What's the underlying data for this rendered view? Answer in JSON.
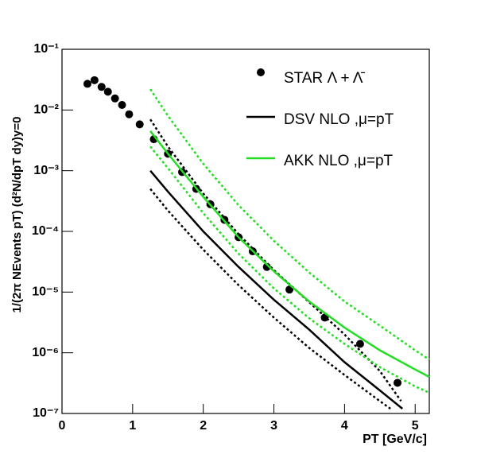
{
  "chart_data": {
    "type": "scatter",
    "ylabel": "1/(2π NEvents pT) (d²N/dpT dy)y=0",
    "xlabel": "PT [GeV/c]",
    "xlim": [
      0,
      5.2
    ],
    "xticks": [
      0,
      1,
      2,
      3,
      4,
      5
    ],
    "ylim": [
      1e-07,
      0.1
    ],
    "log_y": true,
    "yticks": [
      {
        "value": 1e-07,
        "label": "10⁻⁷"
      },
      {
        "value": 1e-06,
        "label": "10⁻⁶"
      },
      {
        "value": 1e-05,
        "label": "10⁻⁵"
      },
      {
        "value": 0.0001,
        "label": "10⁻⁴"
      },
      {
        "value": 0.001,
        "label": "10⁻³"
      },
      {
        "value": 0.01,
        "label": "10⁻²"
      },
      {
        "value": 0.1,
        "label": "10⁻¹"
      }
    ],
    "legend": "top right",
    "series": [
      {
        "name": "STAR Λ + Λ̄",
        "color": "#000000",
        "kind": "points",
        "x": [
          0.36,
          0.46,
          0.56,
          0.65,
          0.75,
          0.85,
          0.95,
          1.1,
          1.3,
          1.5,
          1.7,
          1.9,
          2.1,
          2.3,
          2.5,
          2.7,
          2.9,
          3.22,
          3.72,
          4.22,
          4.75
        ],
        "values": [
          0.027,
          0.031,
          0.024,
          0.02,
          0.0155,
          0.0121,
          0.0085,
          0.0058,
          0.0033,
          0.0019,
          0.00095,
          0.0005,
          0.00028,
          0.000155,
          8e-05,
          4.7e-05,
          2.6e-05,
          1.1e-05,
          3.8e-06,
          1.4e-06,
          3.2e-07
        ]
      },
      {
        "name": "DSV NLO ,μ=pT",
        "color": "#000000",
        "kind": "line",
        "x": [
          1.25,
          1.5,
          2,
          2.5,
          3,
          3.5,
          4,
          4.5,
          4.82
        ],
        "values": [
          0.001,
          0.00045,
          0.0001,
          2.6e-05,
          7.5e-06,
          2.4e-06,
          7e-07,
          2.4e-07,
          1.2e-07
        ]
      },
      {
        "color": "#000000",
        "kind": "dotted",
        "x": [
          1.25,
          1.5,
          2,
          2.5,
          3,
          3.5,
          4,
          4.5,
          4.8
        ],
        "values": [
          0.007,
          0.0025,
          0.00042,
          9e-05,
          2.3e-05,
          6.8e-06,
          2e-06,
          5e-07,
          1.6e-07
        ]
      },
      {
        "color": "#000000",
        "kind": "dotted",
        "x": [
          1.25,
          1.5,
          2,
          2.5,
          3,
          3.5,
          4,
          4.5,
          4.65
        ],
        "values": [
          0.0005,
          0.00022,
          5e-05,
          1.3e-05,
          3.8e-06,
          1.2e-06,
          4.3e-07,
          1.6e-07,
          1.2e-07
        ]
      },
      {
        "name": "AKK NLO ,μ=pT",
        "color": "#22dd22",
        "kind": "line",
        "x": [
          1.25,
          1.5,
          2,
          2.5,
          3,
          3.5,
          4,
          4.5,
          5,
          5.2
        ],
        "values": [
          0.0045,
          0.0019,
          0.00037,
          8e-05,
          2.2e-05,
          7e-06,
          2.6e-06,
          1.1e-06,
          5.3e-07,
          4e-07
        ]
      },
      {
        "color": "#22dd22",
        "kind": "dotted",
        "x": [
          1.25,
          1.5,
          2,
          2.5,
          3,
          3.5,
          4,
          4.5,
          5,
          5.2
        ],
        "values": [
          0.022,
          0.008,
          0.0013,
          0.00027,
          7e-05,
          2.1e-05,
          7e-06,
          2.8e-06,
          1.1e-06,
          7.7e-07
        ]
      },
      {
        "color": "#22dd22",
        "kind": "dotted",
        "x": [
          1.25,
          1.5,
          2,
          2.5,
          3,
          3.5,
          4,
          4.5,
          5,
          5.2
        ],
        "values": [
          0.0025,
          0.0011,
          0.0002,
          4.3e-05,
          1.15e-05,
          3.7e-06,
          1.4e-06,
          5.8e-07,
          2.8e-07,
          2.2e-07
        ]
      }
    ]
  }
}
